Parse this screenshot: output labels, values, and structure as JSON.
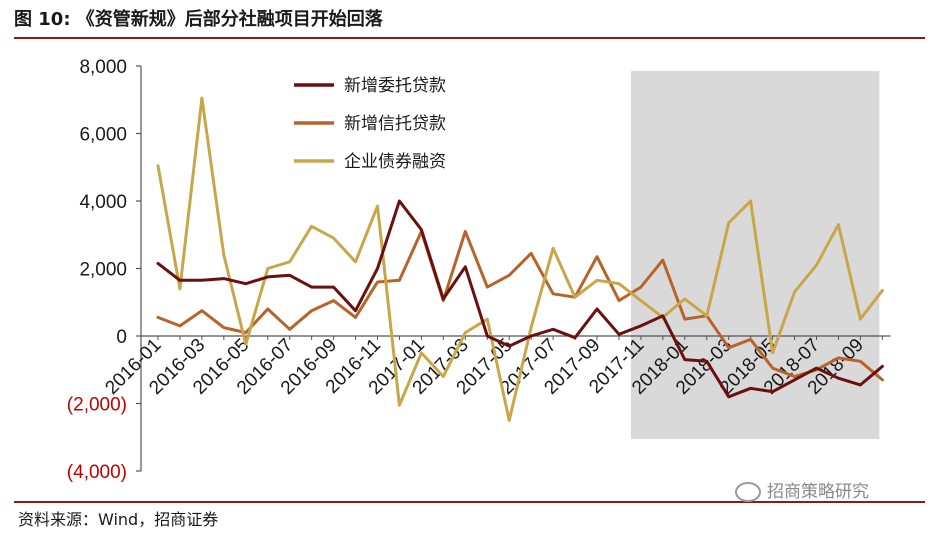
{
  "figure": {
    "title": "图 10: 《资管新规》后部分社融项目开始回落",
    "source": "资料来源：Wind，招商证券",
    "watermark": "招商策略研究"
  },
  "chart_data": {
    "type": "line",
    "title": "",
    "xlabel": "",
    "ylabel": "",
    "ylim": [
      -4000,
      8000
    ],
    "yticks": [
      8000,
      6000,
      4000,
      2000,
      0,
      -2000,
      -4000
    ],
    "ytick_labels": [
      "8,000",
      "6,000",
      "4,000",
      "2,000",
      "0",
      "(2,000)",
      "(4,000)"
    ],
    "x": [
      "2016-01",
      "2016-02",
      "2016-03",
      "2016-04",
      "2016-05",
      "2016-06",
      "2016-07",
      "2016-08",
      "2016-09",
      "2016-10",
      "2016-11",
      "2016-12",
      "2017-01",
      "2017-02",
      "2017-03",
      "2017-04",
      "2017-05",
      "2017-06",
      "2017-07",
      "2017-08",
      "2017-09",
      "2017-10",
      "2017-11",
      "2017-12",
      "2018-01",
      "2018-02",
      "2018-03",
      "2018-04",
      "2018-05",
      "2018-06",
      "2018-07",
      "2018-08",
      "2018-09",
      "2018-10"
    ],
    "xtick_labels": [
      "2016-01",
      "2016-03",
      "2016-05",
      "2016-07",
      "2016-09",
      "2016-11",
      "2017-01",
      "2017-03",
      "2017-05",
      "2017-07",
      "2017-09",
      "2017-11",
      "2018-01",
      "2018-03",
      "2018-05",
      "2018-07",
      "2018-09"
    ],
    "shaded_region": {
      "from": "2017-11",
      "to": "2018-10"
    },
    "legend_position": "top-left",
    "grid": false,
    "series": [
      {
        "name": "新增委托贷款",
        "color": "#6b0f0f",
        "values": [
          2150,
          1650,
          1650,
          1700,
          1550,
          1750,
          1800,
          1450,
          1450,
          750,
          2000,
          4000,
          3150,
          1100,
          2050,
          0,
          -300,
          0,
          200,
          -50,
          800,
          50,
          300,
          600,
          -700,
          -750,
          -1800,
          -1550,
          -1650,
          -1300,
          -950,
          -1250,
          -1450,
          -900
        ]
      },
      {
        "name": "新增信托贷款",
        "color": "#b8632a",
        "values": [
          550,
          300,
          750,
          250,
          100,
          800,
          200,
          750,
          1050,
          550,
          1600,
          1650,
          3100,
          1050,
          3100,
          1450,
          1800,
          2450,
          1250,
          1150,
          2350,
          1050,
          1450,
          2250,
          500,
          600,
          -350,
          -100,
          -950,
          -1200,
          -1000,
          -650,
          -750,
          -1300
        ]
      },
      {
        "name": "企业债券融资",
        "color": "#c9a64a",
        "values": [
          5050,
          1400,
          7050,
          2400,
          -250,
          2000,
          2200,
          3250,
          2900,
          2200,
          3850,
          -2050,
          -500,
          -1200,
          100,
          500,
          -2500,
          250,
          2600,
          1150,
          1650,
          1550,
          1050,
          550,
          1100,
          600,
          3350,
          4000,
          -500,
          1300,
          2100,
          3300,
          500,
          1350
        ]
      }
    ]
  }
}
